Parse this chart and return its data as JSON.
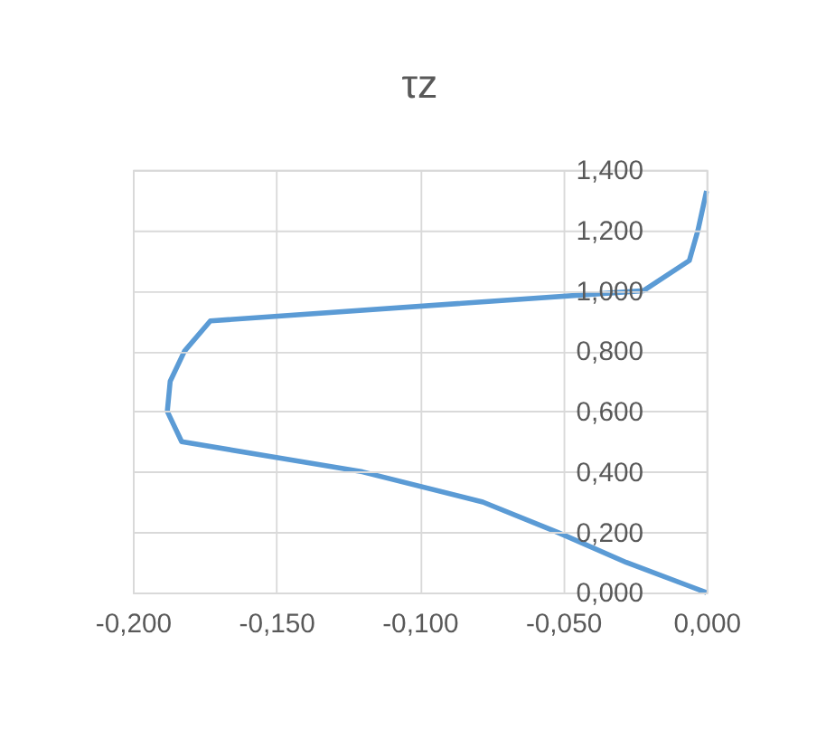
{
  "chart_data": {
    "type": "line",
    "title": "τz",
    "series": [
      {
        "color": "#5b9bd5",
        "x": [
          0,
          -0.028,
          -0.052,
          -0.078,
          -0.12,
          -0.183,
          -0.188,
          -0.187,
          -0.182,
          -0.173,
          -0.022,
          -0.006,
          -0.003,
          0
        ],
        "values": [
          0,
          0.1,
          0.2,
          0.3,
          0.4,
          0.5,
          0.6,
          0.7,
          0.8,
          0.9,
          1.0,
          1.1,
          1.2,
          1.33
        ]
      }
    ],
    "xlim": [
      -0.2,
      0
    ],
    "xticks": [
      {
        "value": -0.2,
        "label": "-0,200"
      },
      {
        "value": -0.15,
        "label": "-0,150"
      },
      {
        "value": -0.1,
        "label": "-0,100"
      },
      {
        "value": -0.05,
        "label": "-0,050"
      },
      {
        "value": 0,
        "label": "0,000"
      }
    ],
    "ylim": [
      0,
      1.4
    ],
    "yticks": [
      {
        "value": 0,
        "label": "0,000"
      },
      {
        "value": 0.2,
        "label": "0,200"
      },
      {
        "value": 0.4,
        "label": "0,400"
      },
      {
        "value": 0.6,
        "label": "0,600"
      },
      {
        "value": 0.8,
        "label": "0,800"
      },
      {
        "value": 1.0,
        "label": "1,000"
      },
      {
        "value": 1.2,
        "label": "1,200"
      },
      {
        "value": 1.4,
        "label": "1,400"
      }
    ],
    "grid": true,
    "marker": "none",
    "line_style": "solid"
  }
}
